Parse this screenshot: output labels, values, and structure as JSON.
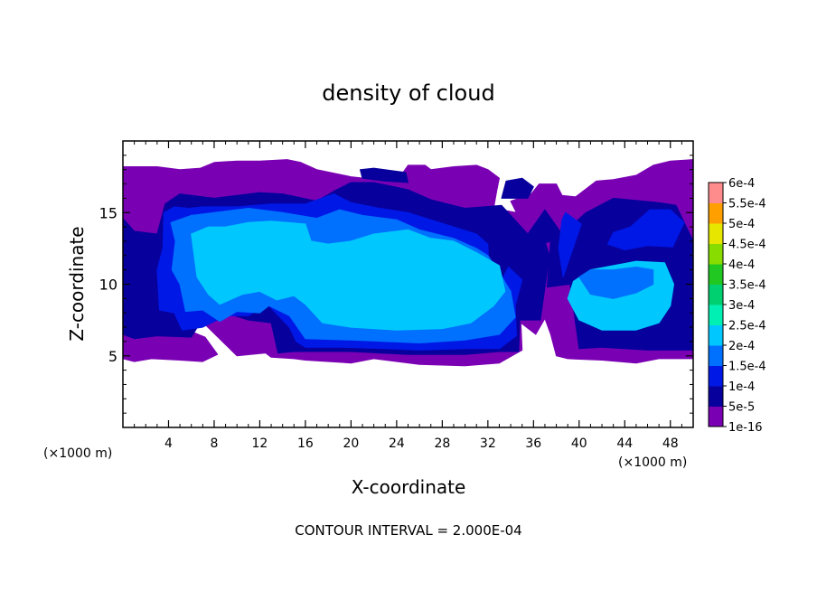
{
  "chart_data": {
    "type": "heatmap",
    "title": "density of cloud",
    "xlabel": "X-coordinate",
    "ylabel": "Z-coordinate",
    "x_unit_left": "(×1000 m)",
    "x_unit_right": "(×1000 m)",
    "footer": "CONTOUR INTERVAL = 2.000E-04",
    "xlim": [
      0,
      50
    ],
    "ylim": [
      0,
      20
    ],
    "xticks": [
      4,
      8,
      12,
      16,
      20,
      24,
      28,
      32,
      36,
      40,
      44,
      48
    ],
    "xtick_labels": [
      "4",
      "8",
      "12",
      "16",
      "20",
      "24",
      "28",
      "32",
      "36",
      "40",
      "44",
      "48"
    ],
    "yticks": [
      5,
      10,
      15
    ],
    "ytick_labels": [
      "5",
      "10",
      "15"
    ],
    "colorbar": {
      "levels": [
        "1e-16",
        "5e-5",
        "1e-4",
        "1.5e-4",
        "2e-4",
        "2.5e-4",
        "3e-4",
        "3.5e-4",
        "4e-4",
        "4.5e-4",
        "5e-4",
        "5.5e-4",
        "6e-4"
      ],
      "colors": [
        "#7a00b4",
        "#08009c",
        "#0018e6",
        "#0070ff",
        "#00c8ff",
        "#00f0b4",
        "#00d070",
        "#22c822",
        "#88dc00",
        "#e6e600",
        "#ffa000",
        "#ff4010",
        "#ff8c8c"
      ]
    },
    "regions": [
      {
        "level": 0,
        "poly": [
          [
            0,
            4.8
          ],
          [
            1,
            4.6
          ],
          [
            2.5,
            4.8
          ],
          [
            5,
            4.7
          ],
          [
            7,
            4.6
          ],
          [
            8.3,
            5.1
          ],
          [
            7.2,
            6.3
          ],
          [
            6,
            6.7
          ],
          [
            6.8,
            7.5
          ],
          [
            10,
            5
          ],
          [
            12.5,
            5.2
          ],
          [
            13,
            4.9
          ],
          [
            15,
            4.8
          ],
          [
            16,
            4.7
          ],
          [
            20,
            4.5
          ],
          [
            22,
            4.8
          ],
          [
            26,
            4.4
          ],
          [
            30,
            4.3
          ],
          [
            33,
            4.5
          ],
          [
            35,
            5.4
          ],
          [
            34.9,
            7.3
          ],
          [
            36.2,
            6.5
          ],
          [
            37,
            7.6
          ],
          [
            37.5,
            6.5
          ],
          [
            38,
            5
          ],
          [
            39,
            4.8
          ],
          [
            42,
            4.7
          ],
          [
            45,
            4.5
          ],
          [
            47,
            4.8
          ],
          [
            50,
            4.8
          ],
          [
            50,
            18.7
          ],
          [
            48,
            18.6
          ],
          [
            46.5,
            18.3
          ],
          [
            45,
            17.6
          ],
          [
            43,
            17.3
          ],
          [
            41.5,
            17.2
          ],
          [
            39.7,
            16.1
          ],
          [
            38.5,
            16.2
          ],
          [
            38,
            17
          ],
          [
            36.5,
            17
          ],
          [
            35.8,
            16.3
          ],
          [
            34,
            15.8
          ],
          [
            34.5,
            15
          ],
          [
            32.5,
            15.3
          ],
          [
            32.8,
            16.6
          ],
          [
            33,
            17.4
          ],
          [
            32,
            18
          ],
          [
            31,
            18.3
          ],
          [
            29,
            18.2
          ],
          [
            27,
            18
          ],
          [
            26.5,
            18.3
          ],
          [
            25,
            18.3
          ],
          [
            24.2,
            17.4
          ],
          [
            21.2,
            17.4
          ],
          [
            20,
            17.5
          ],
          [
            17,
            18
          ],
          [
            15.6,
            18.5
          ],
          [
            14.4,
            18.7
          ],
          [
            12,
            18.6
          ],
          [
            10,
            18.6
          ],
          [
            8,
            18.5
          ],
          [
            6.8,
            18.1
          ],
          [
            5,
            18
          ],
          [
            3,
            18.2
          ],
          [
            1,
            18.2
          ],
          [
            0,
            18.2
          ]
        ]
      },
      {
        "level": 1,
        "poly": [
          [
            0,
            6.5
          ],
          [
            1,
            6.2
          ],
          [
            3,
            6.4
          ],
          [
            6,
            6.3
          ],
          [
            7,
            7.6
          ],
          [
            9,
            8
          ],
          [
            11,
            7.5
          ],
          [
            13,
            7.3
          ],
          [
            13.6,
            5.2
          ],
          [
            15,
            5.3
          ],
          [
            20,
            5.3
          ],
          [
            25,
            5.1
          ],
          [
            30,
            5.1
          ],
          [
            33,
            5.3
          ],
          [
            34.7,
            5.3
          ],
          [
            34.8,
            7.5
          ],
          [
            36.6,
            7.5
          ],
          [
            37.4,
            12
          ],
          [
            36.5,
            14.2
          ],
          [
            35.6,
            12.5
          ],
          [
            37.5,
            13
          ],
          [
            37.2,
            9.8
          ],
          [
            39.2,
            10
          ],
          [
            40,
            5.5
          ],
          [
            42,
            5.6
          ],
          [
            46,
            5.4
          ],
          [
            50,
            5.4
          ],
          [
            50,
            13
          ],
          [
            48.5,
            15.5
          ],
          [
            47,
            15.7
          ],
          [
            43,
            16
          ],
          [
            40.6,
            15
          ],
          [
            38.5,
            13.5
          ],
          [
            37,
            15.2
          ],
          [
            35.5,
            13.5
          ],
          [
            34,
            14.8
          ],
          [
            33.2,
            15.5
          ],
          [
            30,
            15.3
          ],
          [
            27,
            15.9
          ],
          [
            25,
            16.6
          ],
          [
            22,
            17.1
          ],
          [
            20,
            17.1
          ],
          [
            18.5,
            16.5
          ],
          [
            17,
            15.8
          ],
          [
            15.2,
            16.1
          ],
          [
            14,
            16.3
          ],
          [
            12,
            16.4
          ],
          [
            10,
            16.2
          ],
          [
            8,
            16
          ],
          [
            5,
            16.3
          ],
          [
            3.7,
            15.6
          ],
          [
            3,
            13.5
          ],
          [
            1,
            13.7
          ],
          [
            0,
            14.6
          ]
        ]
      },
      {
        "level": 2,
        "poly": [
          [
            3.2,
            8.2
          ],
          [
            4.5,
            8
          ],
          [
            5.2,
            6.8
          ],
          [
            7,
            7
          ],
          [
            9,
            7.8
          ],
          [
            11,
            7.8
          ],
          [
            12,
            8.3
          ],
          [
            12.2,
            9
          ],
          [
            14,
            7.5
          ],
          [
            14.6,
            7
          ],
          [
            15.2,
            6
          ],
          [
            16,
            5.6
          ],
          [
            19,
            5.6
          ],
          [
            23,
            5.5
          ],
          [
            26,
            5.4
          ],
          [
            30,
            5.5
          ],
          [
            33,
            5.5
          ],
          [
            34.5,
            6.4
          ],
          [
            34.4,
            8.5
          ],
          [
            35,
            10.3
          ],
          [
            33.8,
            11.2
          ],
          [
            33,
            10
          ],
          [
            32.1,
            10.7
          ],
          [
            32,
            12.8
          ],
          [
            31,
            13.5
          ],
          [
            29,
            14
          ],
          [
            27,
            14.5
          ],
          [
            25,
            15
          ],
          [
            22.5,
            15.3
          ],
          [
            20,
            15.7
          ],
          [
            18.5,
            16.3
          ],
          [
            16,
            15.6
          ],
          [
            13,
            15.6
          ],
          [
            10,
            15.4
          ],
          [
            7,
            15.4
          ],
          [
            5.8,
            15.3
          ],
          [
            4.5,
            15.4
          ],
          [
            3.6,
            15
          ],
          [
            3.5,
            12.5
          ],
          [
            3,
            11
          ]
        ]
      },
      {
        "level": 3,
        "poly": [
          [
            5.5,
            8.1
          ],
          [
            7,
            8.2
          ],
          [
            8.5,
            7.4
          ],
          [
            10,
            8.1
          ],
          [
            12,
            8
          ],
          [
            12.8,
            8.5
          ],
          [
            14.6,
            7.8
          ],
          [
            16,
            6.2
          ],
          [
            20,
            6.1
          ],
          [
            26,
            5.9
          ],
          [
            30,
            6.1
          ],
          [
            33,
            6.5
          ],
          [
            34.4,
            7.7
          ],
          [
            34,
            9.5
          ],
          [
            33,
            10.8
          ],
          [
            32,
            12
          ],
          [
            31,
            12.5
          ],
          [
            29,
            13.2
          ],
          [
            26,
            13.8
          ],
          [
            24,
            14.5
          ],
          [
            21,
            14.8
          ],
          [
            19,
            15.2
          ],
          [
            17,
            14.6
          ],
          [
            14,
            15
          ],
          [
            11,
            15.3
          ],
          [
            8,
            15
          ],
          [
            6,
            14.8
          ],
          [
            4.2,
            14.3
          ],
          [
            4.6,
            13
          ],
          [
            4.3,
            11
          ],
          [
            5,
            10
          ]
        ]
      },
      {
        "level": 4,
        "poly": [
          [
            6.5,
            10.5
          ],
          [
            7.5,
            9.3
          ],
          [
            8.5,
            8.6
          ],
          [
            10.5,
            9.3
          ],
          [
            12,
            9.5
          ],
          [
            13.5,
            8.9
          ],
          [
            15,
            9.2
          ],
          [
            16,
            8.6
          ],
          [
            17.5,
            7.3
          ],
          [
            20,
            7
          ],
          [
            24,
            6.8
          ],
          [
            28,
            6.9
          ],
          [
            30.5,
            7.3
          ],
          [
            32.5,
            8.5
          ],
          [
            33.5,
            9.5
          ],
          [
            33,
            11.3
          ],
          [
            31,
            12.2
          ],
          [
            29,
            13
          ],
          [
            27,
            13.2
          ],
          [
            25,
            13.8
          ],
          [
            22,
            13.5
          ],
          [
            20,
            13
          ],
          [
            18,
            12.8
          ],
          [
            16.5,
            13
          ],
          [
            16,
            14.2
          ],
          [
            13,
            14.4
          ],
          [
            11,
            14.3
          ],
          [
            9,
            14
          ],
          [
            7.5,
            14
          ],
          [
            6,
            13.5
          ]
        ]
      },
      {
        "level": 4,
        "poly": [
          [
            39,
            9
          ],
          [
            40,
            7.5
          ],
          [
            42,
            6.8
          ],
          [
            45,
            6.8
          ],
          [
            47,
            7.3
          ],
          [
            48,
            8.5
          ],
          [
            48.3,
            10
          ],
          [
            47.5,
            11.5
          ],
          [
            45,
            11.6
          ],
          [
            43,
            11.3
          ],
          [
            41,
            11
          ],
          [
            39.5,
            10.2
          ]
        ]
      },
      {
        "level": 3,
        "poly": [
          [
            40,
            10.5
          ],
          [
            41,
            9.3
          ],
          [
            43,
            9
          ],
          [
            45,
            9.4
          ],
          [
            46.5,
            10
          ],
          [
            46.5,
            11
          ],
          [
            45,
            11.2
          ],
          [
            43,
            11
          ],
          [
            41,
            11
          ]
        ]
      },
      {
        "level": 2,
        "poly": [
          [
            42.5,
            12.8
          ],
          [
            44,
            12.4
          ],
          [
            46,
            12.7
          ],
          [
            48.2,
            12.6
          ],
          [
            49.2,
            14.3
          ],
          [
            48,
            15.2
          ],
          [
            46.2,
            15.2
          ],
          [
            44.5,
            14
          ],
          [
            43,
            13.6
          ]
        ]
      },
      {
        "level": 2,
        "poly": [
          [
            38.6,
            10.5
          ],
          [
            40.2,
            14.2
          ],
          [
            38.8,
            15
          ],
          [
            38.5,
            14.5
          ],
          [
            38.2,
            12.5
          ]
        ]
      },
      {
        "level": 1,
        "poly": [
          [
            33.2,
            16
          ],
          [
            35.5,
            16
          ],
          [
            36,
            16.8
          ],
          [
            35,
            17.4
          ],
          [
            33.6,
            17.2
          ]
        ]
      },
      {
        "level": 1,
        "poly": [
          [
            21,
            17.4
          ],
          [
            23,
            17.2
          ],
          [
            25,
            17.1
          ],
          [
            24.8,
            17.8
          ],
          [
            22,
            18.1
          ],
          [
            20.8,
            18
          ]
        ]
      },
      {
        "level": 1,
        "poly": [
          [
            0,
            11
          ],
          [
            1.5,
            10.8
          ],
          [
            2.8,
            11.5
          ],
          [
            2.4,
            12.8
          ],
          [
            1,
            13
          ],
          [
            0,
            12.7
          ]
        ]
      }
    ]
  }
}
